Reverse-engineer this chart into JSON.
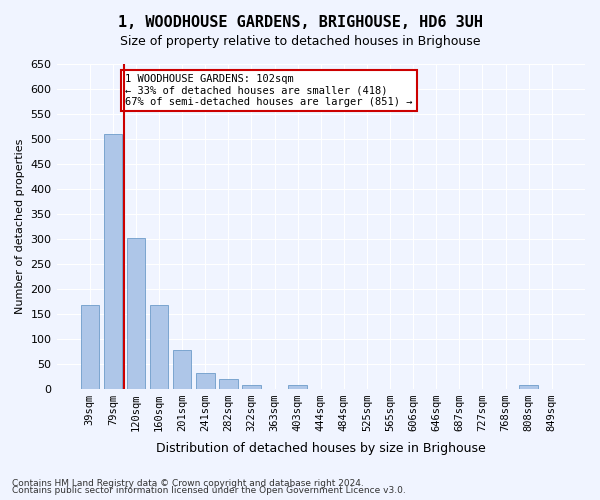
{
  "title": "1, WOODHOUSE GARDENS, BRIGHOUSE, HD6 3UH",
  "subtitle": "Size of property relative to detached houses in Brighouse",
  "xlabel": "Distribution of detached houses by size in Brighouse",
  "ylabel": "Number of detached properties",
  "bar_color": "#aec6e8",
  "bar_edge_color": "#5a8fc2",
  "background_color": "#f0f4ff",
  "grid_color": "#ffffff",
  "categories": [
    "39sqm",
    "79sqm",
    "120sqm",
    "160sqm",
    "201sqm",
    "241sqm",
    "282sqm",
    "322sqm",
    "363sqm",
    "403sqm",
    "444sqm",
    "484sqm",
    "525sqm",
    "565sqm",
    "606sqm",
    "646sqm",
    "687sqm",
    "727sqm",
    "768sqm",
    "808sqm",
    "849sqm"
  ],
  "values": [
    168,
    510,
    302,
    168,
    78,
    31,
    20,
    8,
    0,
    8,
    0,
    0,
    0,
    0,
    0,
    0,
    0,
    0,
    0,
    8,
    0
  ],
  "vline_x": 2,
  "vline_color": "#cc0000",
  "annotation_text": "1 WOODHOUSE GARDENS: 102sqm\n← 33% of detached houses are smaller (418)\n67% of semi-detached houses are larger (851) →",
  "annotation_box_color": "#ffffff",
  "annotation_box_edge": "#cc0000",
  "ylim": [
    0,
    650
  ],
  "yticks": [
    0,
    50,
    100,
    150,
    200,
    250,
    300,
    350,
    400,
    450,
    500,
    550,
    600,
    650
  ],
  "footer1": "Contains HM Land Registry data © Crown copyright and database right 2024.",
  "footer2": "Contains public sector information licensed under the Open Government Licence v3.0."
}
